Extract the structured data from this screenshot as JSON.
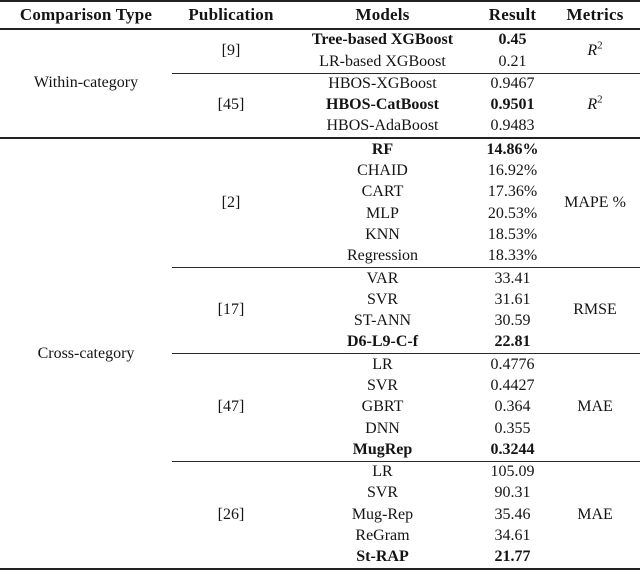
{
  "header": {
    "comparison_type": "Comparison Type",
    "publication": "Publication",
    "models": "Models",
    "result": "Result",
    "metrics": "Metrics"
  },
  "within": {
    "label": "Within-category",
    "g9": {
      "pub": "[9]",
      "metric": {
        "base": "R",
        "sup": "2"
      },
      "rows": [
        {
          "model": "Tree-based XGBoost",
          "result": "0.45",
          "bold": true
        },
        {
          "model": "LR-based XGBoost",
          "result": "0.21",
          "bold": false
        }
      ]
    },
    "g45": {
      "pub": "[45]",
      "metric": {
        "base": "R",
        "sup": "2"
      },
      "rows": [
        {
          "model": "HBOS-XGBoost",
          "result": "0.9467",
          "bold": false
        },
        {
          "model": "HBOS-CatBoost",
          "result": "0.9501",
          "bold": true
        },
        {
          "model": "HBOS-AdaBoost",
          "result": "0.9483",
          "bold": false
        }
      ]
    }
  },
  "cross": {
    "label": "Cross-category",
    "g2": {
      "pub": "[2]",
      "metric": {
        "base": "MAPE %"
      },
      "rows": [
        {
          "model": "RF",
          "result": "14.86%",
          "bold": true
        },
        {
          "model": "CHAID",
          "result": "16.92%",
          "bold": false
        },
        {
          "model": "CART",
          "result": "17.36%",
          "bold": false
        },
        {
          "model": "MLP",
          "result": "20.53%",
          "bold": false
        },
        {
          "model": "KNN",
          "result": "18.53%",
          "bold": false
        },
        {
          "model": "Regression",
          "result": "18.33%",
          "bold": false
        }
      ]
    },
    "g17": {
      "pub": "[17]",
      "metric": {
        "base": "RMSE"
      },
      "rows": [
        {
          "model": "VAR",
          "result": "33.41",
          "bold": false
        },
        {
          "model": "SVR",
          "result": "31.61",
          "bold": false
        },
        {
          "model": "ST-ANN",
          "result": "30.59",
          "bold": false
        },
        {
          "model": "D6-L9-C-f",
          "result": "22.81",
          "bold": true
        }
      ]
    },
    "g47": {
      "pub": "[47]",
      "metric": {
        "base": "MAE"
      },
      "rows": [
        {
          "model": "LR",
          "result": "0.4776",
          "bold": false
        },
        {
          "model": "SVR",
          "result": "0.4427",
          "bold": false
        },
        {
          "model": "GBRT",
          "result": "0.364",
          "bold": false
        },
        {
          "model": "DNN",
          "result": "0.355",
          "bold": false
        },
        {
          "model": "MugRep",
          "result": "0.3244",
          "bold": true
        }
      ]
    },
    "g26": {
      "pub": "[26]",
      "metric": {
        "base": "MAE"
      },
      "rows": [
        {
          "model": "LR",
          "result": "105.09",
          "bold": false
        },
        {
          "model": "SVR",
          "result": "90.31",
          "bold": false
        },
        {
          "model": "Mug-Rep",
          "result": "35.46",
          "bold": false
        },
        {
          "model": "ReGram",
          "result": "34.61",
          "bold": false
        },
        {
          "model": "St-RAP",
          "result": "21.77",
          "bold": true
        }
      ]
    }
  }
}
